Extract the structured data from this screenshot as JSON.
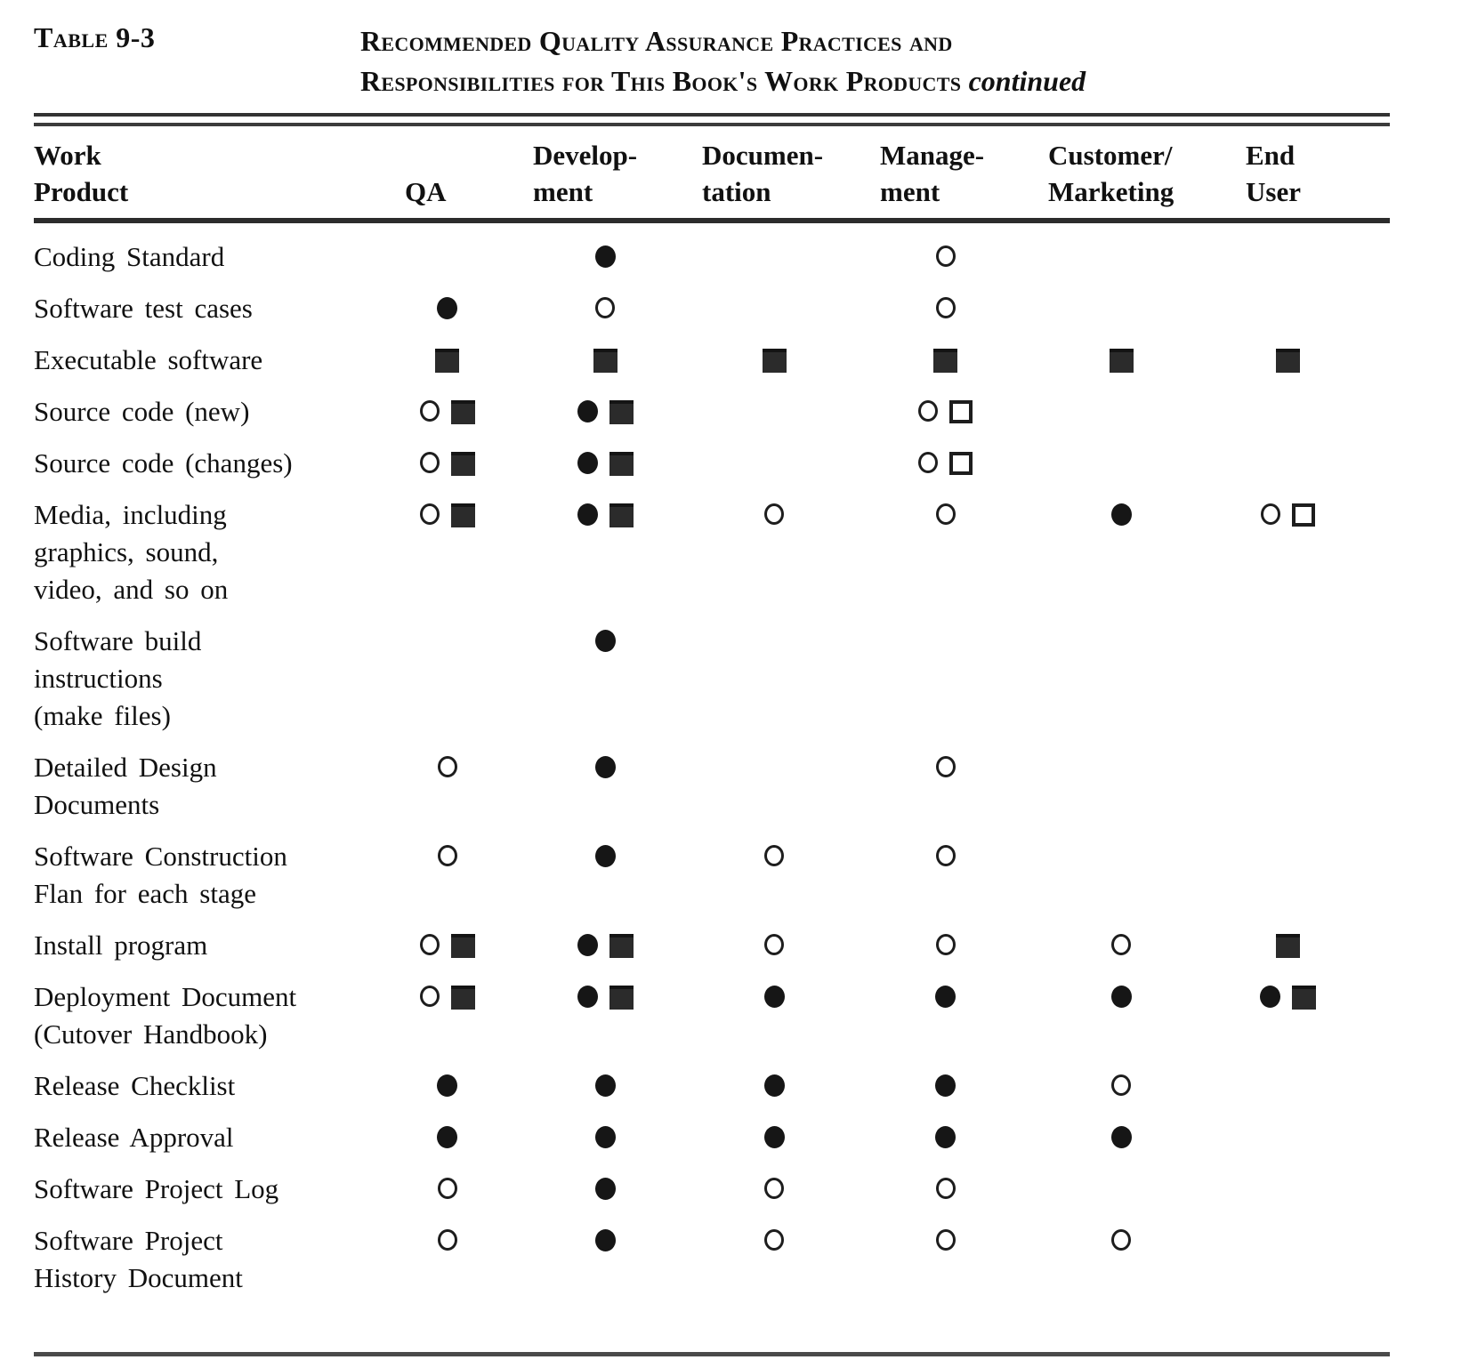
{
  "caption": {
    "label": "Table 9-3",
    "title_line1": "Recommended Quality Assurance Practices and",
    "title_line2": "Responsibilities for This Book's Work Products",
    "title_continued": "continued"
  },
  "columns": [
    {
      "id": "product",
      "label": "Work\nProduct"
    },
    {
      "id": "qa",
      "label": "QA"
    },
    {
      "id": "dev",
      "label": "Develop-\nment"
    },
    {
      "id": "doc",
      "label": "Documen-\ntation"
    },
    {
      "id": "mgmt",
      "label": "Manage-\nment"
    },
    {
      "id": "cust",
      "label": "Customer/\nMarketing"
    },
    {
      "id": "end",
      "label": "End\nUser"
    }
  ],
  "symbols": {
    "fc": "filled-circle",
    "oc": "open-circle",
    "fs": "filled-square",
    "os": "open-square"
  },
  "rows": [
    {
      "product": "Coding Standard",
      "qa": [],
      "dev": [
        "fc"
      ],
      "doc": [],
      "mgmt": [
        "oc"
      ],
      "cust": [],
      "end": []
    },
    {
      "product": "Software test cases",
      "qa": [
        "fc"
      ],
      "dev": [
        "oc"
      ],
      "doc": [],
      "mgmt": [
        "oc"
      ],
      "cust": [],
      "end": []
    },
    {
      "product": "Executable software",
      "qa": [
        "fs"
      ],
      "dev": [
        "fs"
      ],
      "doc": [
        "fs"
      ],
      "mgmt": [
        "fs"
      ],
      "cust": [
        "fs"
      ],
      "end": [
        "fs"
      ]
    },
    {
      "product": "Source code (new)",
      "qa": [
        "oc",
        "fs"
      ],
      "dev": [
        "fc",
        "fs"
      ],
      "doc": [],
      "mgmt": [
        "oc",
        "os"
      ],
      "cust": [],
      "end": []
    },
    {
      "product": "Source code (changes)",
      "qa": [
        "oc",
        "fs"
      ],
      "dev": [
        "fc",
        "fs"
      ],
      "doc": [],
      "mgmt": [
        "oc",
        "os"
      ],
      "cust": [],
      "end": []
    },
    {
      "product": "Media, including\ngraphics, sound,\nvideo, and so on",
      "qa": [
        "oc",
        "fs"
      ],
      "dev": [
        "fc",
        "fs"
      ],
      "doc": [
        "oc"
      ],
      "mgmt": [
        "oc"
      ],
      "cust": [
        "fc"
      ],
      "end": [
        "oc",
        "os"
      ]
    },
    {
      "product": "Software build\ninstructions\n(make files)",
      "qa": [],
      "dev": [
        "fc"
      ],
      "doc": [],
      "mgmt": [],
      "cust": [],
      "end": []
    },
    {
      "product": "Detailed Design\nDocuments",
      "qa": [
        "oc"
      ],
      "dev": [
        "fc"
      ],
      "doc": [],
      "mgmt": [
        "oc"
      ],
      "cust": [],
      "end": []
    },
    {
      "product": "Software Construction\nFlan for each stage",
      "qa": [
        "oc"
      ],
      "dev": [
        "fc"
      ],
      "doc": [
        "oc"
      ],
      "mgmt": [
        "oc"
      ],
      "cust": [],
      "end": []
    },
    {
      "product": "Install program",
      "qa": [
        "oc",
        "fs"
      ],
      "dev": [
        "fc",
        "fs"
      ],
      "doc": [
        "oc"
      ],
      "mgmt": [
        "oc"
      ],
      "cust": [
        "oc"
      ],
      "end": [
        "fs"
      ]
    },
    {
      "product": "Deployment Document\n(Cutover Handbook)",
      "qa": [
        "oc",
        "fs"
      ],
      "dev": [
        "fc",
        "fs"
      ],
      "doc": [
        "fc"
      ],
      "mgmt": [
        "fc"
      ],
      "cust": [
        "fc"
      ],
      "end": [
        "fc",
        "fs"
      ]
    },
    {
      "product": "Release Checklist",
      "qa": [
        "fc"
      ],
      "dev": [
        "fc"
      ],
      "doc": [
        "fc"
      ],
      "mgmt": [
        "fc"
      ],
      "cust": [
        "oc"
      ],
      "end": []
    },
    {
      "product": "Release Approval",
      "qa": [
        "fc"
      ],
      "dev": [
        "fc"
      ],
      "doc": [
        "fc"
      ],
      "mgmt": [
        "fc"
      ],
      "cust": [
        "fc"
      ],
      "end": []
    },
    {
      "product": "Software Project Log",
      "qa": [
        "oc"
      ],
      "dev": [
        "fc"
      ],
      "doc": [
        "oc"
      ],
      "mgmt": [
        "oc"
      ],
      "cust": [],
      "end": []
    },
    {
      "product": "Software Project\nHistory Document",
      "qa": [
        "oc"
      ],
      "dev": [
        "fc"
      ],
      "doc": [
        "oc"
      ],
      "mgmt": [
        "oc"
      ],
      "cust": [
        "oc"
      ],
      "end": []
    }
  ]
}
